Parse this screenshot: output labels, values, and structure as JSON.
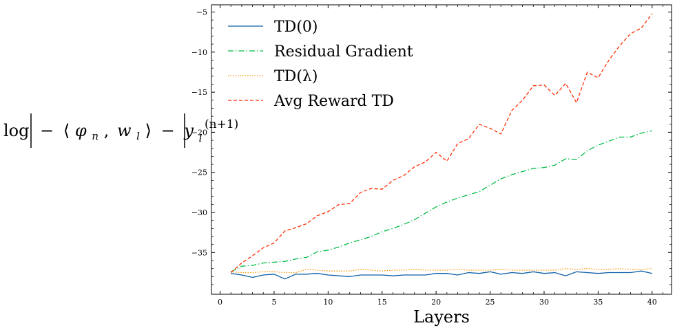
{
  "chart_data": {
    "type": "line",
    "title": "",
    "xlabel": "Layers",
    "ylabel_parts": {
      "fn": "log",
      "minus": "−",
      "open": "⟨",
      "phi": "φ",
      "sub_n": "n",
      "comma": ",",
      "w": "w",
      "sub_l": "l",
      "close": "⟩",
      "minus2": "−",
      "y": "y",
      "y_sub": "l",
      "y_sup": "(n+1)"
    },
    "xlim": [
      -0.8,
      41.8
    ],
    "ylim": [
      -40.2,
      -4.1
    ],
    "xticks": [
      0,
      5,
      10,
      15,
      20,
      25,
      30,
      35,
      40
    ],
    "xtick_labels": [
      "0",
      "5",
      "10",
      "15",
      "20",
      "25",
      "30",
      "35",
      "40"
    ],
    "yticks": [
      -35,
      -30,
      -25,
      -20,
      -15,
      -10,
      -5
    ],
    "ytick_labels": [
      "−35",
      "−30",
      "−25",
      "−20",
      "−15",
      "−10",
      "−5"
    ],
    "x": [
      1,
      2,
      3,
      4,
      5,
      6,
      7,
      8,
      9,
      10,
      11,
      12,
      13,
      14,
      15,
      16,
      17,
      18,
      19,
      20,
      21,
      22,
      23,
      24,
      25,
      26,
      27,
      28,
      29,
      30,
      31,
      32,
      33,
      34,
      35,
      36,
      37,
      38,
      39,
      40
    ],
    "legend_position": "upper-left",
    "series": [
      {
        "name": "TD(0)",
        "color": "#0C5DA5",
        "dash": "solid",
        "values": [
          -37.6,
          -37.8,
          -38.1,
          -37.8,
          -37.7,
          -38.3,
          -37.7,
          -37.7,
          -37.6,
          -37.8,
          -37.9,
          -38.0,
          -37.8,
          -37.8,
          -37.8,
          -37.9,
          -37.8,
          -37.8,
          -37.8,
          -37.6,
          -37.6,
          -37.8,
          -37.5,
          -37.6,
          -37.4,
          -37.7,
          -37.5,
          -37.6,
          -37.4,
          -37.6,
          -37.5,
          -37.9,
          -37.4,
          -37.5,
          -37.6,
          -37.5,
          -37.5,
          -37.5,
          -37.3,
          -37.6
        ]
      },
      {
        "name": "Residual Gradient",
        "color": "#00B945",
        "dash": "dashdot",
        "values": [
          -37.4,
          -36.7,
          -36.6,
          -36.3,
          -36.2,
          -36.1,
          -35.8,
          -35.6,
          -34.9,
          -34.7,
          -34.3,
          -33.8,
          -33.4,
          -33.0,
          -32.4,
          -32.0,
          -31.5,
          -30.9,
          -30.1,
          -29.3,
          -28.7,
          -28.2,
          -27.8,
          -27.4,
          -26.6,
          -25.8,
          -25.3,
          -24.9,
          -24.5,
          -24.4,
          -24.1,
          -23.3,
          -23.4,
          -22.3,
          -21.6,
          -21.1,
          -20.6,
          -20.6,
          -20.1,
          -19.8
        ]
      },
      {
        "name": "TD(λ)",
        "color": "#FF9500",
        "dash": "dotted",
        "values": [
          -37.4,
          -37.5,
          -37.5,
          -37.4,
          -37.4,
          -37.5,
          -37.5,
          -37.1,
          -37.2,
          -37.3,
          -37.3,
          -37.3,
          -37.1,
          -37.2,
          -37.3,
          -37.2,
          -37.2,
          -37.1,
          -37.2,
          -37.2,
          -37.2,
          -37.1,
          -37.2,
          -37.2,
          -37.2,
          -37.1,
          -37.2,
          -37.2,
          -37.2,
          -37.2,
          -37.2,
          -37.0,
          -37.1,
          -37.0,
          -37.1,
          -37.1,
          -37.0,
          -37.1,
          -37.1,
          -37.0
        ]
      },
      {
        "name": "Avg Reward TD",
        "color": "#FF2C00",
        "dash": "dashed",
        "values": [
          -37.5,
          -36.3,
          -35.4,
          -34.4,
          -33.8,
          -32.3,
          -31.9,
          -31.4,
          -30.4,
          -29.9,
          -29.0,
          -28.9,
          -27.5,
          -27.0,
          -27.1,
          -26.0,
          -25.4,
          -24.3,
          -23.7,
          -22.5,
          -23.6,
          -21.4,
          -20.8,
          -19.0,
          -19.5,
          -20.2,
          -17.3,
          -16.0,
          -14.2,
          -14.1,
          -15.4,
          -13.9,
          -16.3,
          -12.5,
          -13.2,
          -11.0,
          -9.2,
          -7.7,
          -7.0,
          -5.2
        ]
      }
    ]
  }
}
